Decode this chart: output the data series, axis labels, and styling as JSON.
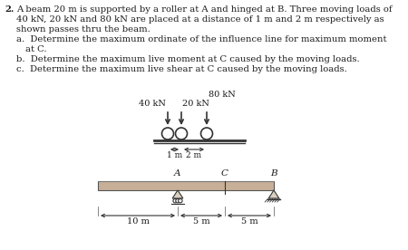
{
  "bg_color": "#ffffff",
  "text_color": "#1a1a1a",
  "loads_label_40": "40 kN",
  "loads_label_20": "20 kN",
  "loads_label_80": "80 kN",
  "dim_1m": "1 m",
  "dim_2m": "2 m",
  "label_A": "A",
  "label_C": "C",
  "label_B": "B",
  "dim_10m": "10 m",
  "dim_5m_AC": "5 m",
  "dim_5m_CB": "5 m",
  "beam_face": "#c8b098",
  "beam_edge": "#555555",
  "support_face": "#d8d0c0",
  "support_edge": "#333333"
}
